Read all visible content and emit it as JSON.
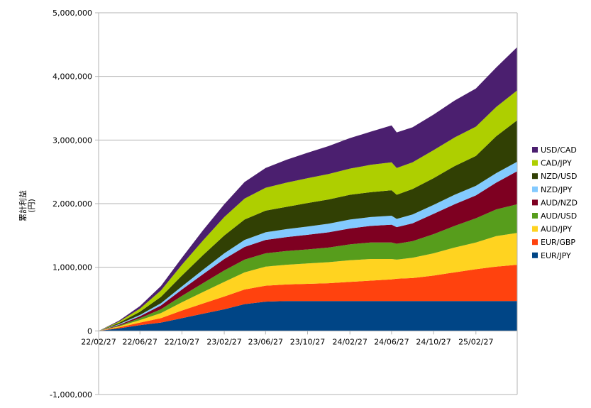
{
  "chart_data": {
    "type": "area",
    "stacked": true,
    "ylabel": "累計利益\n(円)",
    "ylim": [
      -1000000,
      5000000
    ],
    "yticks": [
      -1000000,
      0,
      1000000,
      2000000,
      3000000,
      4000000,
      5000000
    ],
    "ytick_labels": [
      "-1,000,000",
      "0",
      "1,000,000",
      "2,000,000",
      "3,000,000",
      "4,000,000",
      "5,000,000"
    ],
    "x_start": "22/02/27",
    "x_end": "25/06/27",
    "xtick_labels": [
      "22/02/27",
      "22/06/27",
      "22/10/27",
      "23/02/27",
      "23/06/27",
      "23/10/27",
      "24/02/27",
      "24/06/27",
      "24/10/27",
      "25/02/27"
    ],
    "grid": "horizontal",
    "legend_position": "right",
    "x": [
      "22/02/27",
      "22/04/27",
      "22/06/27",
      "22/08/27",
      "22/10/27",
      "22/12/27",
      "23/02/27",
      "23/04/27",
      "23/06/27",
      "23/08/27",
      "23/10/27",
      "23/12/27",
      "24/02/27",
      "24/04/27",
      "24/06/27",
      "24/07/12",
      "24/08/27",
      "24/10/27",
      "24/12/27",
      "25/02/27",
      "25/04/27",
      "25/06/27"
    ],
    "series": [
      {
        "name": "EUR/JPY",
        "color": "#004586",
        "values": [
          0,
          40000,
          90000,
          130000,
          200000,
          270000,
          340000,
          420000,
          460000,
          470000,
          470000,
          470000,
          470000,
          470000,
          470000,
          470000,
          470000,
          470000,
          470000,
          470000,
          470000,
          470000
        ]
      },
      {
        "name": "EUR/GBP",
        "color": "#ff420e",
        "values": [
          0,
          15000,
          40000,
          70000,
          120000,
          160000,
          200000,
          230000,
          250000,
          260000,
          270000,
          280000,
          300000,
          320000,
          340000,
          350000,
          360000,
          400000,
          450000,
          500000,
          540000,
          570000
        ]
      },
      {
        "name": "AUD/JPY",
        "color": "#ffd320",
        "values": [
          0,
          15000,
          40000,
          80000,
          130000,
          180000,
          230000,
          270000,
          300000,
          310000,
          320000,
          330000,
          340000,
          340000,
          320000,
          300000,
          320000,
          350000,
          390000,
          420000,
          480000,
          500000
        ]
      },
      {
        "name": "AUD/USD",
        "color": "#579d1c",
        "values": [
          0,
          10000,
          30000,
          60000,
          100000,
          140000,
          180000,
          200000,
          210000,
          215000,
          220000,
          230000,
          250000,
          260000,
          260000,
          250000,
          260000,
          300000,
          340000,
          380000,
          420000,
          450000
        ]
      },
      {
        "name": "AUD/NZD",
        "color": "#7e0021",
        "values": [
          0,
          15000,
          30000,
          60000,
          100000,
          140000,
          180000,
          200000,
          210000,
          220000,
          230000,
          240000,
          250000,
          260000,
          280000,
          260000,
          280000,
          320000,
          340000,
          360000,
          420000,
          520000
        ]
      },
      {
        "name": "NZD/JPY",
        "color": "#83caff",
        "values": [
          0,
          10000,
          20000,
          35000,
          50000,
          70000,
          90000,
          110000,
          120000,
          125000,
          130000,
          135000,
          140000,
          140000,
          140000,
          130000,
          140000,
          140000,
          150000,
          150000,
          150000,
          150000
        ]
      },
      {
        "name": "NZD/USD",
        "color": "#314004",
        "values": [
          0,
          20000,
          50000,
          100000,
          170000,
          230000,
          280000,
          320000,
          340000,
          350000,
          370000,
          380000,
          390000,
          390000,
          400000,
          380000,
          400000,
          420000,
          450000,
          470000,
          580000,
          650000
        ]
      },
      {
        "name": "CAD/JPY",
        "color": "#aecf00",
        "values": [
          0,
          20000,
          50000,
          100000,
          170000,
          230000,
          290000,
          330000,
          360000,
          380000,
          390000,
          400000,
          410000,
          430000,
          440000,
          420000,
          420000,
          440000,
          450000,
          460000,
          460000,
          470000
        ]
      },
      {
        "name": "USD/CAD",
        "color": "#4b1f6f",
        "values": [
          0,
          15000,
          40000,
          70000,
          110000,
          160000,
          200000,
          260000,
          310000,
          360000,
          400000,
          440000,
          480000,
          520000,
          580000,
          560000,
          550000,
          560000,
          580000,
          600000,
          620000,
          680000
        ]
      }
    ]
  }
}
